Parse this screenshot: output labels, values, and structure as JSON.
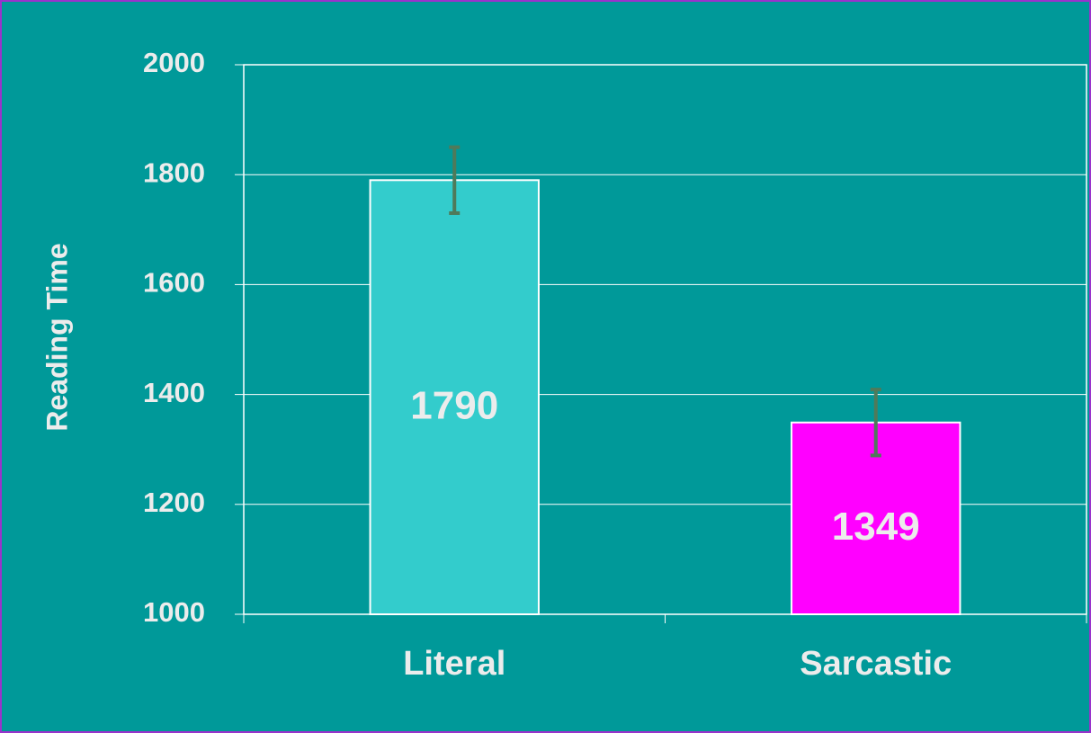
{
  "chart_data": {
    "type": "bar",
    "y_label": "Reading Time",
    "categories": [
      "Literal",
      "Sarcastic"
    ],
    "values": [
      1790,
      1349
    ],
    "errors": [
      60,
      60
    ],
    "colors": [
      "#33cccc",
      "#ff00ff"
    ],
    "error_color": "#4f7a5a",
    "ylim": [
      1000,
      2000
    ],
    "yticks": [
      1000,
      1200,
      1400,
      1600,
      1800,
      2000
    ],
    "grid": true
  }
}
